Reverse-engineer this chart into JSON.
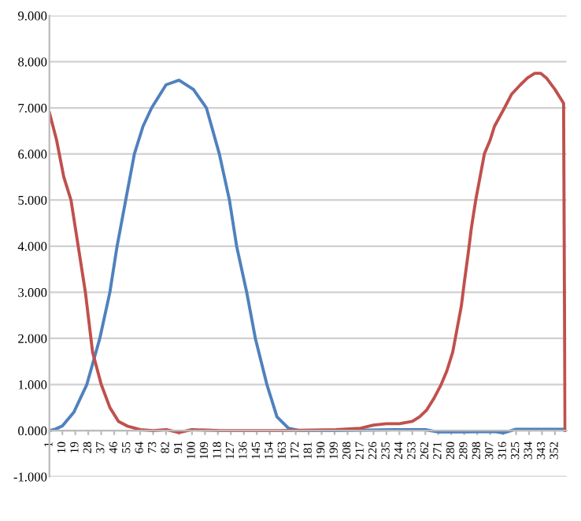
{
  "chart_data": {
    "type": "line",
    "grid": "y",
    "marker": "none",
    "line_style": "solid",
    "xlim": [
      1,
      360
    ],
    "xticks": [
      1,
      10,
      19,
      28,
      37,
      46,
      55,
      64,
      73,
      82,
      91,
      100,
      109,
      118,
      127,
      136,
      145,
      154,
      163,
      172,
      181,
      190,
      199,
      208,
      217,
      226,
      235,
      244,
      253,
      262,
      271,
      280,
      289,
      298,
      307,
      316,
      325,
      334,
      343,
      352
    ],
    "ylim": [
      -1,
      9
    ],
    "yticks": [
      {
        "value": -1,
        "label": "-1.000"
      },
      {
        "value": 0,
        "label": "0.000"
      },
      {
        "value": 1,
        "label": "1.000"
      },
      {
        "value": 2,
        "label": "2.000"
      },
      {
        "value": 3,
        "label": "3.000"
      },
      {
        "value": 4,
        "label": "4.000"
      },
      {
        "value": 5,
        "label": "5.000"
      },
      {
        "value": 6,
        "label": "6.000"
      },
      {
        "value": 7,
        "label": "7.000"
      },
      {
        "value": 8,
        "label": "8.000"
      },
      {
        "value": 9,
        "label": "9.000"
      }
    ],
    "series": [
      {
        "color": "#4f81bd",
        "x": [
          1,
          5,
          10,
          18,
          27,
          36,
          43,
          48,
          54,
          60,
          66,
          72,
          82,
          91,
          101,
          110,
          119,
          126,
          131,
          138,
          144,
          152,
          159,
          167,
          175,
          200,
          240,
          262,
          271,
          290,
          310,
          316,
          325,
          340,
          358
        ],
        "values": [
          0,
          0.03,
          0.1,
          0.4,
          1,
          2,
          3,
          4,
          5,
          6,
          6.6,
          7,
          7.5,
          7.6,
          7.4,
          7,
          6,
          5,
          4,
          3,
          2,
          1,
          0.3,
          0.05,
          0,
          0,
          0.02,
          0.02,
          -0.03,
          -0.03,
          -0.02,
          -0.05,
          0.03,
          0.03,
          0.03
        ]
      },
      {
        "color": "#c0504d",
        "x": [
          1,
          6,
          11,
          16,
          21,
          26,
          31,
          37,
          43,
          49,
          55,
          64,
          73,
          82,
          91,
          100,
          120,
          160,
          200,
          217,
          226,
          235,
          244,
          253,
          258,
          263,
          268,
          273,
          277,
          281,
          284,
          287,
          289,
          292,
          294,
          297,
          300,
          303,
          307,
          310,
          317,
          322,
          328,
          333,
          338,
          342,
          346,
          352,
          358,
          359
        ],
        "values": [
          6.9,
          6.3,
          5.5,
          5,
          4,
          3,
          1.7,
          1,
          0.5,
          0.2,
          0.1,
          0.02,
          0,
          0.02,
          -0.04,
          0.02,
          0,
          0,
          0.02,
          0.05,
          0.12,
          0.15,
          0.15,
          0.2,
          0.3,
          0.45,
          0.7,
          1,
          1.3,
          1.7,
          2.2,
          2.7,
          3.2,
          3.9,
          4.4,
          5,
          5.5,
          6,
          6.3,
          6.6,
          7,
          7.3,
          7.5,
          7.65,
          7.75,
          7.75,
          7.65,
          7.4,
          7.1,
          0
        ]
      }
    ]
  }
}
